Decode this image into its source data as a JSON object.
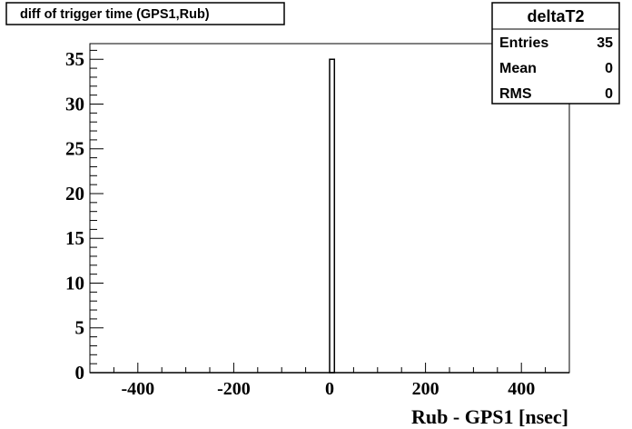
{
  "title_box": {
    "text": "diff of trigger time (GPS1,Rub)"
  },
  "stats_box": {
    "name": "deltaT2",
    "rows": [
      {
        "label": "Entries",
        "value": "35"
      },
      {
        "label": "Mean",
        "value": "0"
      },
      {
        "label": "RMS",
        "value": "0"
      }
    ]
  },
  "chart_data": {
    "type": "bar",
    "title": "diff of trigger time (GPS1,Rub)",
    "xlabel": "Rub - GPS1 [nsec]",
    "ylabel": "",
    "xlim": [
      -500,
      500
    ],
    "ylim": [
      0,
      36.75
    ],
    "grid": false,
    "legend": "top-right stats box",
    "x_ticks": [
      -400,
      -200,
      0,
      200,
      400
    ],
    "x_tick_labels": [
      "-400",
      "-200",
      "0",
      "200",
      "400"
    ],
    "y_ticks": [
      0,
      5,
      10,
      15,
      20,
      25,
      30,
      35
    ],
    "y_tick_labels": [
      "0",
      "5",
      "10",
      "15",
      "20",
      "25",
      "30",
      "35"
    ],
    "bins": [
      {
        "x_low": 0,
        "x_high": 10,
        "value": 35
      }
    ]
  }
}
